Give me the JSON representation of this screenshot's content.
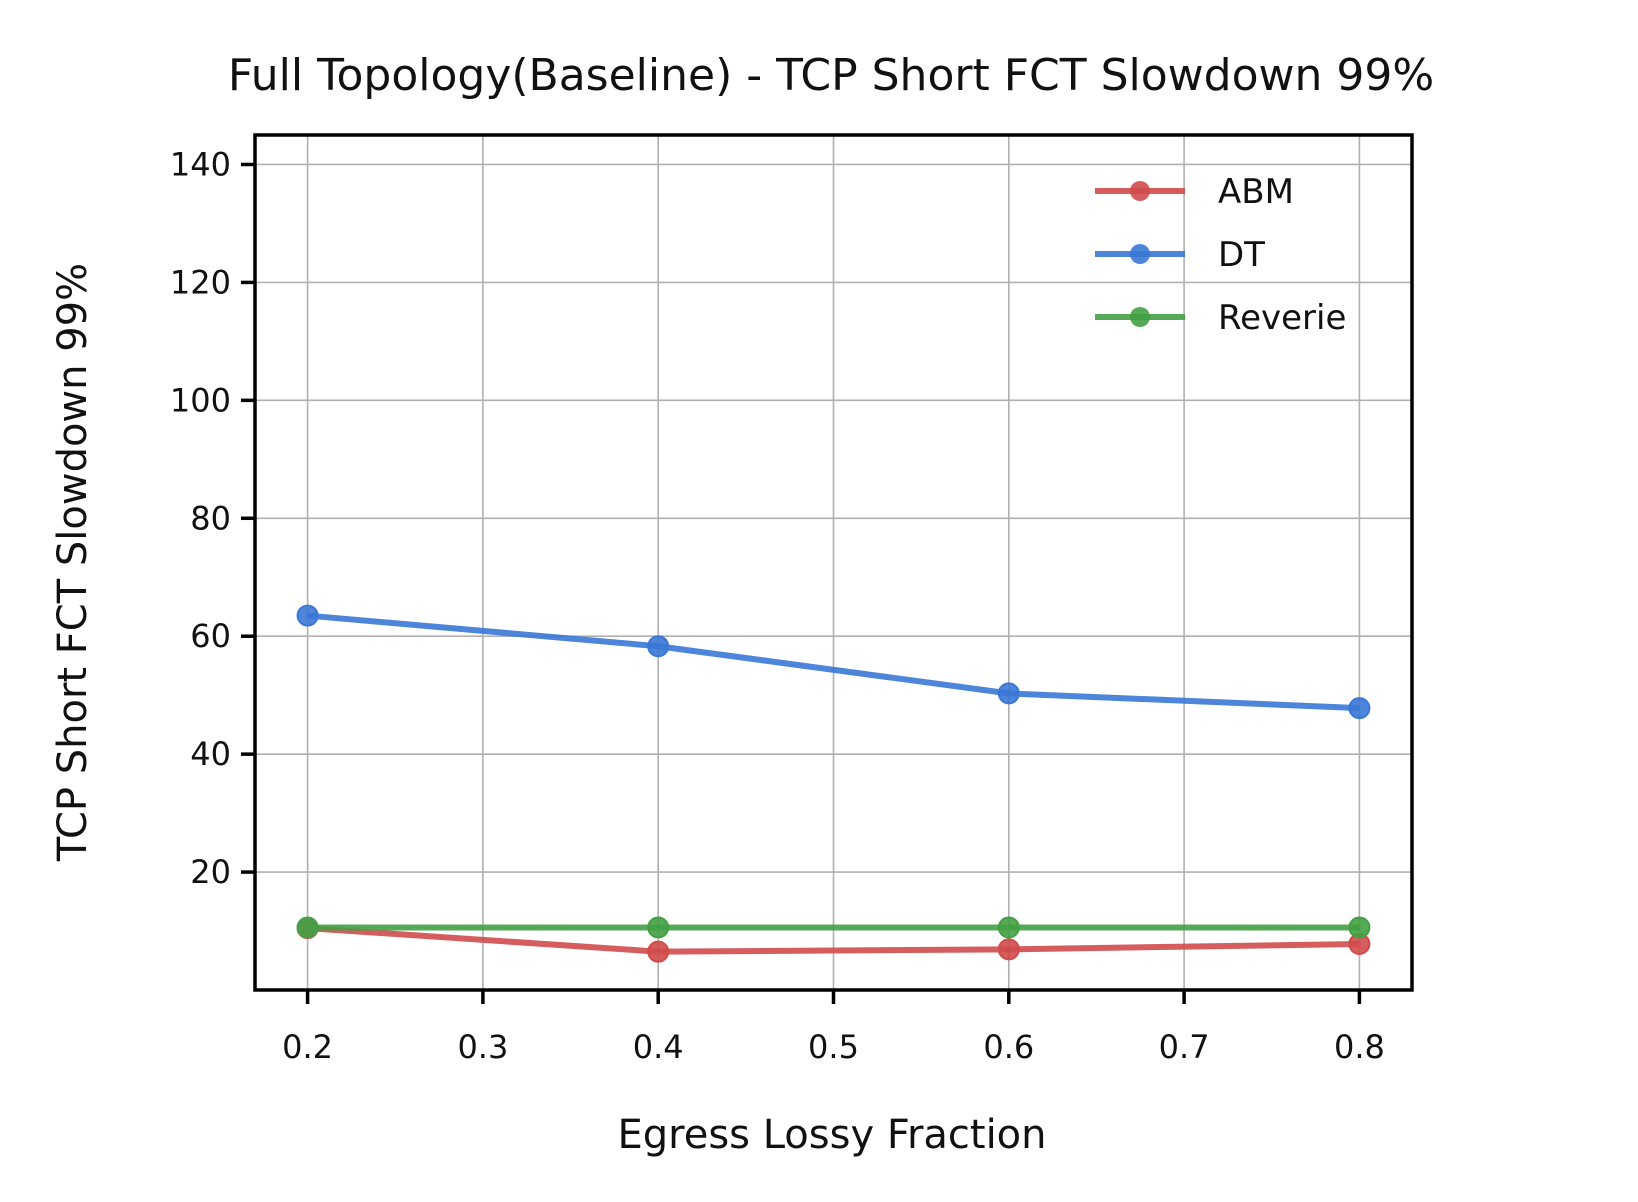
{
  "chart_data": {
    "type": "line",
    "title": "Full Topology(Baseline) - TCP Short FCT Slowdown 99%",
    "xlabel": "Egress Lossy Fraction",
    "ylabel": "TCP Short FCT Slowdown 99%",
    "x": [
      0.2,
      0.4,
      0.6,
      0.8
    ],
    "xlim": [
      0.17,
      0.83
    ],
    "ylim": [
      0,
      145
    ],
    "xticks": [
      0.2,
      0.3,
      0.4,
      0.5,
      0.6,
      0.7,
      0.8
    ],
    "xtick_labels": [
      "0.2",
      "0.3",
      "0.4",
      "0.5",
      "0.6",
      "0.7",
      "0.8"
    ],
    "yticks": [
      20,
      40,
      60,
      80,
      100,
      120,
      140
    ],
    "ytick_labels": [
      "20",
      "40",
      "60",
      "80",
      "100",
      "120",
      "140"
    ],
    "grid": true,
    "legend_position": "top-right",
    "series": [
      {
        "name": "ABM",
        "color": "#d14b4b",
        "values": [
          10.5,
          6.5,
          6.9,
          7.8
        ]
      },
      {
        "name": "DT",
        "color": "#3a78d6",
        "values": [
          63.5,
          58.3,
          50.3,
          47.8
        ]
      },
      {
        "name": "Reverie",
        "color": "#44a044",
        "values": [
          10.6,
          10.6,
          10.6,
          10.6
        ]
      }
    ]
  }
}
